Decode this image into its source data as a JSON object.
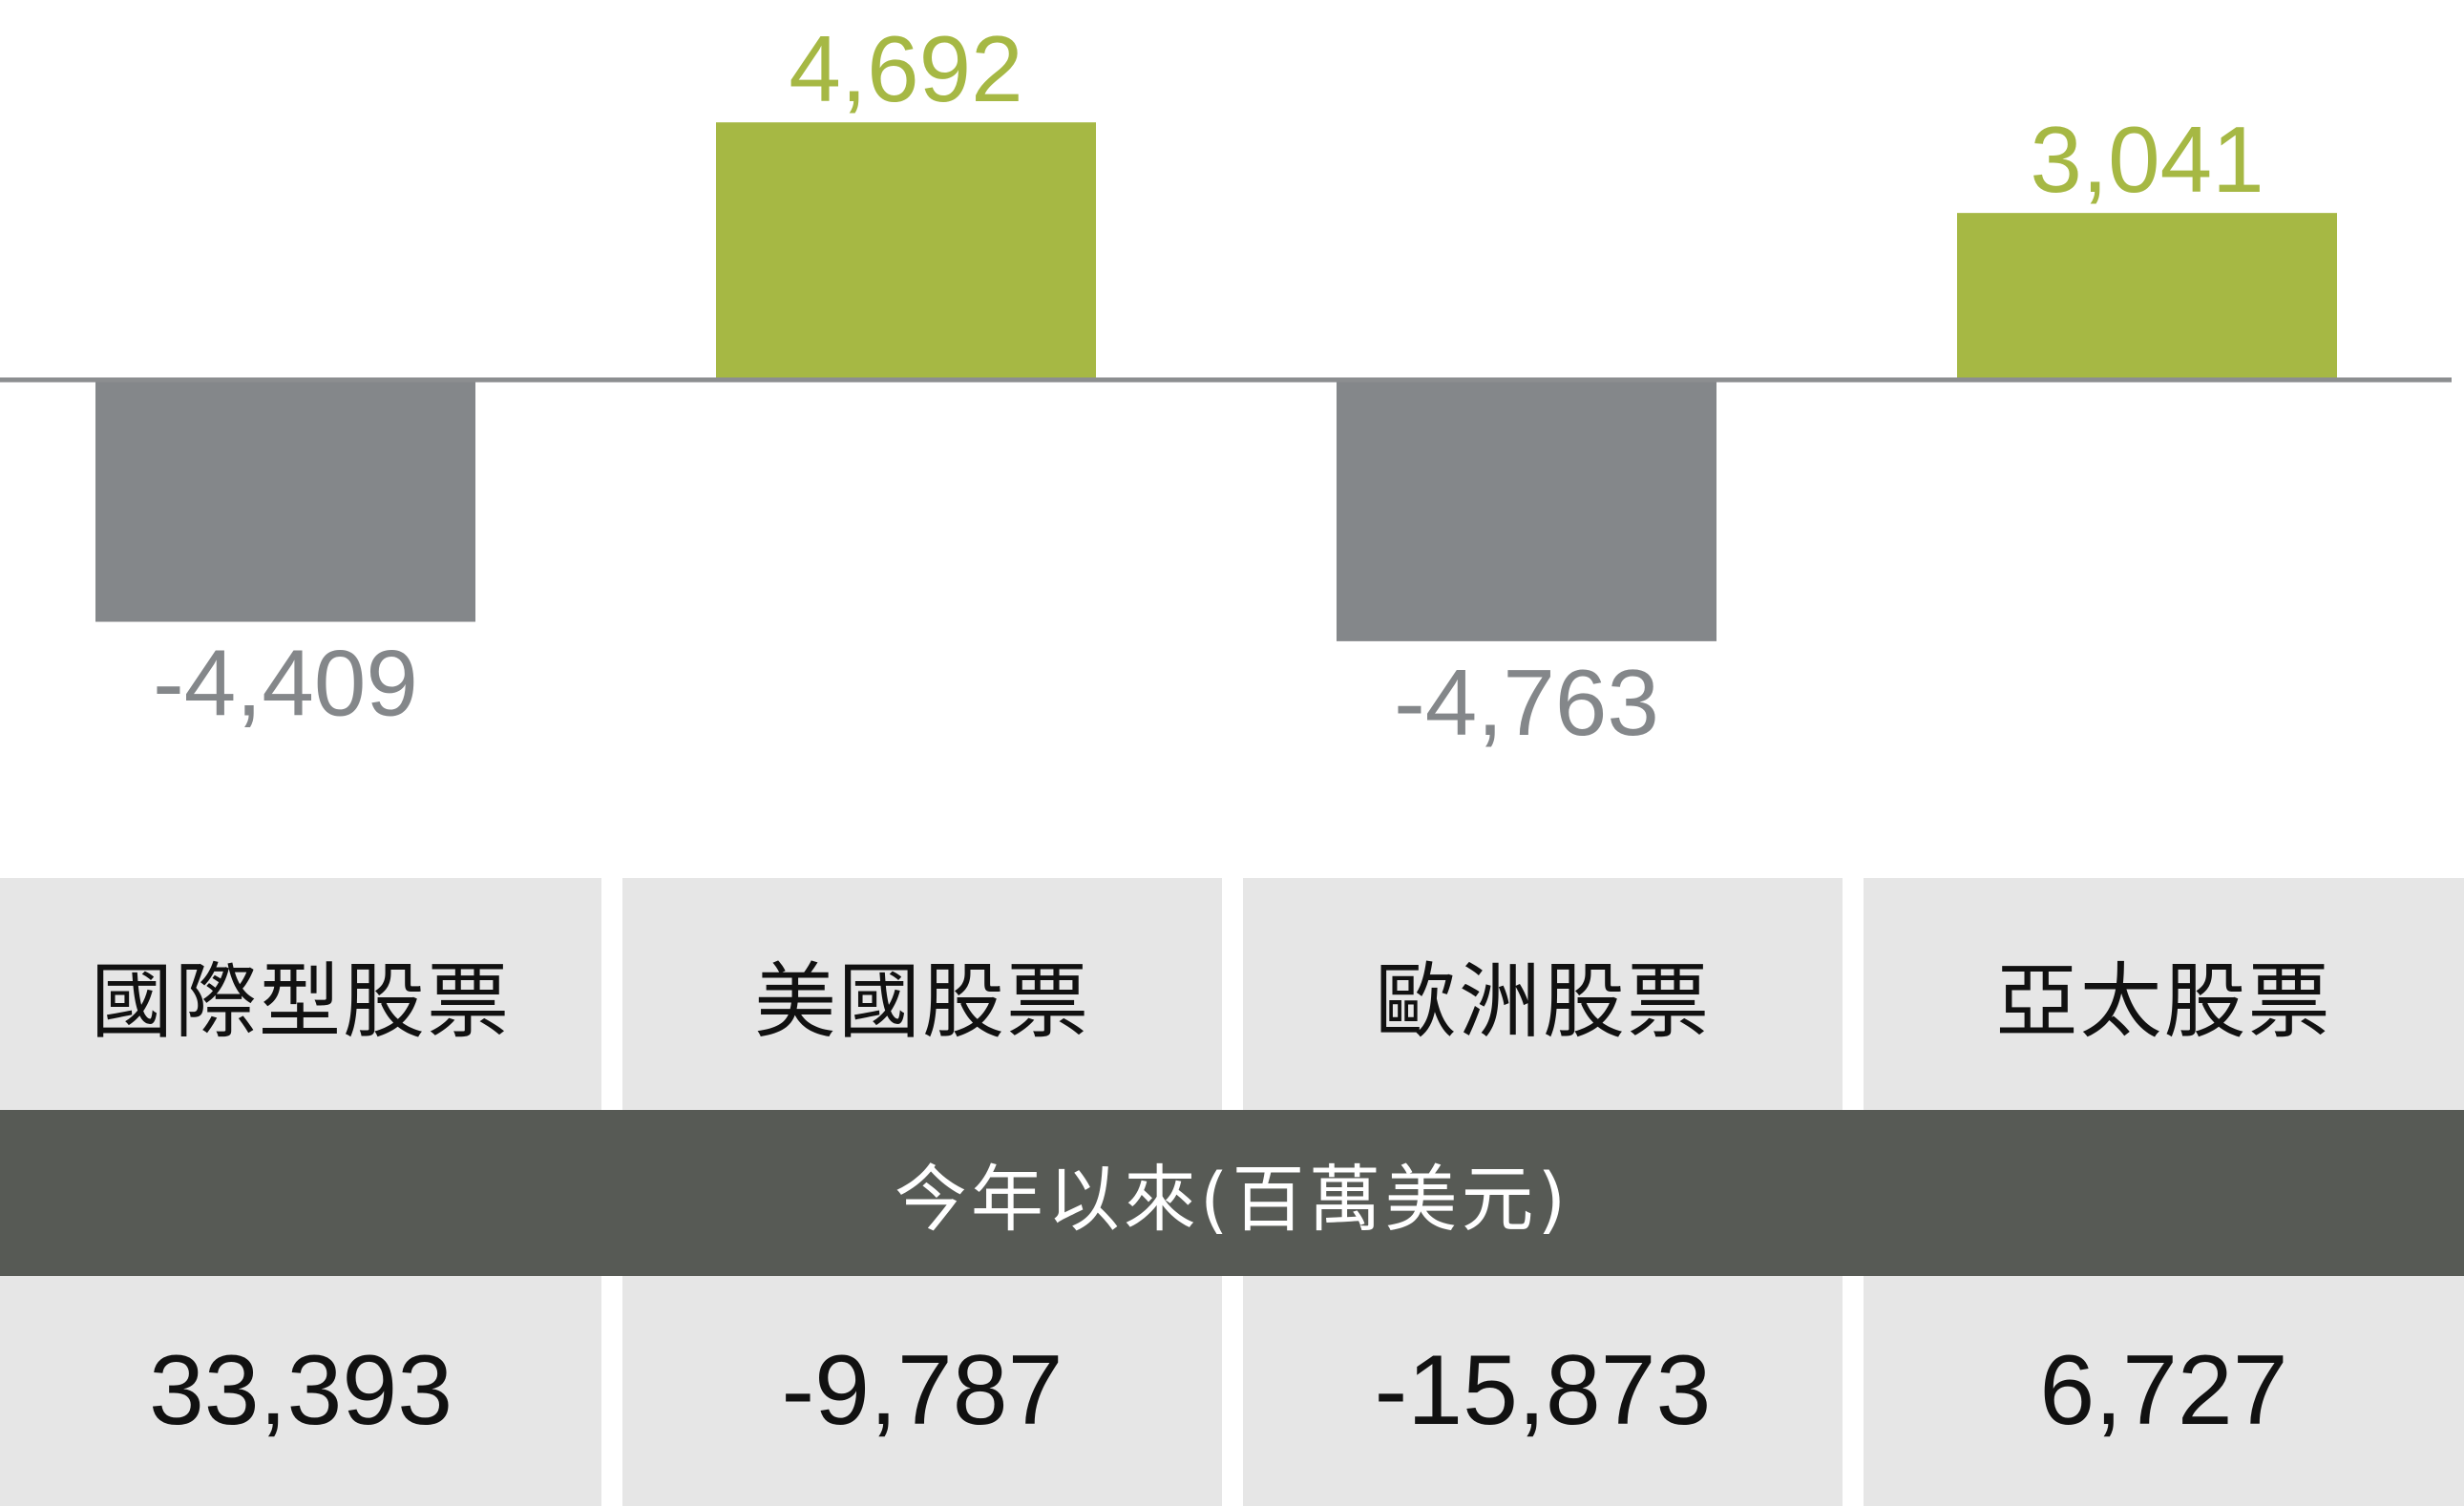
{
  "chart_data": {
    "type": "bar",
    "categories": [
      "國際型股票",
      "美國股票",
      "歐洲股票",
      "亞太股票"
    ],
    "values": [
      -4409,
      4692,
      -4763,
      3041
    ],
    "value_labels": [
      "-4,409",
      "4,692",
      "-4,763",
      "3,041"
    ],
    "title": "",
    "xlabel": "",
    "ylabel": "",
    "grid": false,
    "colors": {
      "positive": "#a6b844",
      "negative": "#84878a",
      "baseline": "#8c8e90"
    }
  },
  "table": {
    "band_label": "今年以來(百萬美元)",
    "ytd_values": [
      "33,393",
      "-9,787",
      "-15,873",
      "6,727"
    ]
  },
  "colors": {
    "cell_background": "#e6e6e6",
    "band_background": "#575a55",
    "text_dark": "#111111",
    "text_light": "#ffffff"
  }
}
